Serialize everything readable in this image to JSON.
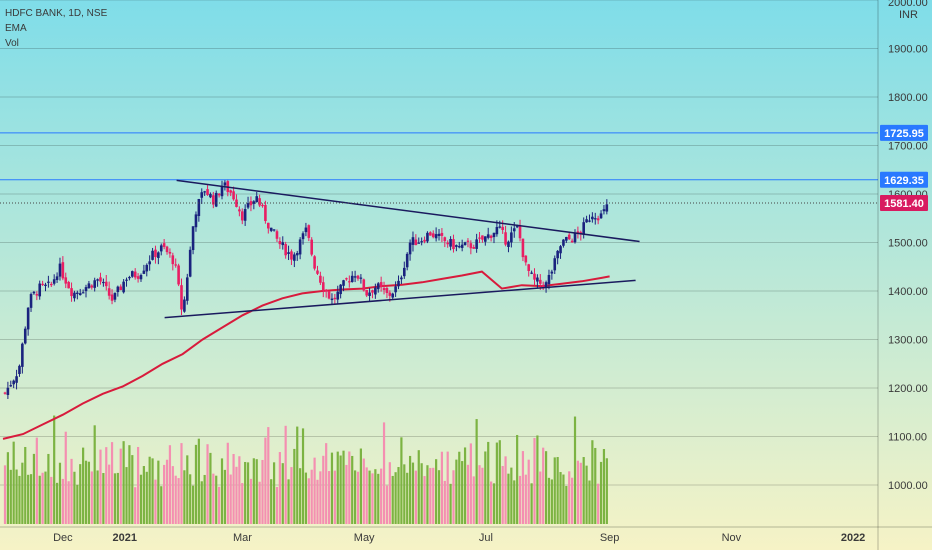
{
  "legend": {
    "symbol_line": "HDFC BANK, 1D, NSE",
    "ema_label": "EMA",
    "vol_label": "Vol"
  },
  "currency": "INR",
  "price_tags": [
    {
      "value": 1725.95,
      "label": "1725.95",
      "bg": "#2979ff",
      "fg": "#ffffff"
    },
    {
      "value": 1629.35,
      "label": "1629.35",
      "bg": "#2979ff",
      "fg": "#ffffff"
    },
    {
      "value": 1581.4,
      "label": "1581.40",
      "bg": "#d81b60",
      "fg": "#ffffff"
    }
  ],
  "colors": {
    "up": "#1a237e",
    "down": "#e91e63",
    "vol_up": "#7cb342",
    "vol_down": "#f48fb1",
    "ema": "#d81b3c",
    "trend": "#1a1a5e",
    "hline": "#2979ff",
    "bg_top": "#7fdde9",
    "bg_bottom": "#f6f3c6"
  },
  "chart_data": {
    "type": "candlestick",
    "y_axis": {
      "ticks": [
        1000,
        1100,
        1200,
        1300,
        1400,
        1500,
        1600,
        1700,
        1800,
        1900,
        2000
      ],
      "tick_labels": [
        "1000.00",
        "1100.00",
        "1200.00",
        "1300.00",
        "1400.00",
        "1500.00",
        "1600.00",
        "1700.00",
        "1800.00",
        "1900.00",
        "2000.00"
      ],
      "range": [
        910,
        2000
      ]
    },
    "x_axis": {
      "range_days": [
        0,
        432
      ],
      "ticks": [
        {
          "label": "Dec",
          "day": 30,
          "bold": false
        },
        {
          "label": "2021",
          "day": 61,
          "bold": true
        },
        {
          "label": "Mar",
          "day": 120,
          "bold": false
        },
        {
          "label": "May",
          "day": 181,
          "bold": false
        },
        {
          "label": "Jul",
          "day": 242,
          "bold": false
        },
        {
          "label": "Sep",
          "day": 304,
          "bold": false
        },
        {
          "label": "Nov",
          "day": 365,
          "bold": false
        },
        {
          "label": "2022",
          "day": 426,
          "bold": true
        }
      ]
    },
    "horizontal_lines": [
      1725.95,
      1629.35
    ],
    "trendlines": [
      {
        "from": {
          "day": 87,
          "price": 1628
        },
        "to": {
          "day": 319,
          "price": 1502
        }
      },
      {
        "from": {
          "day": 81,
          "price": 1345
        },
        "to": {
          "day": 317,
          "price": 1422
        }
      }
    ],
    "close_path": [
      [
        1,
        1190
      ],
      [
        8,
        1240
      ],
      [
        13,
        1380
      ],
      [
        18,
        1405
      ],
      [
        24,
        1410
      ],
      [
        28,
        1450
      ],
      [
        35,
        1395
      ],
      [
        42,
        1410
      ],
      [
        48,
        1425
      ],
      [
        55,
        1380
      ],
      [
        62,
        1430
      ],
      [
        68,
        1435
      ],
      [
        74,
        1470
      ],
      [
        80,
        1490
      ],
      [
        86,
        1460
      ],
      [
        90,
        1350
      ],
      [
        96,
        1560
      ],
      [
        101,
        1610
      ],
      [
        106,
        1585
      ],
      [
        110,
        1620
      ],
      [
        115,
        1600
      ],
      [
        120,
        1555
      ],
      [
        127,
        1595
      ],
      [
        132,
        1545
      ],
      [
        138,
        1500
      ],
      [
        145,
        1470
      ],
      [
        152,
        1525
      ],
      [
        156,
        1455
      ],
      [
        161,
        1405
      ],
      [
        165,
        1380
      ],
      [
        168,
        1395
      ],
      [
        172,
        1420
      ],
      [
        177,
        1440
      ],
      [
        182,
        1395
      ],
      [
        187,
        1410
      ],
      [
        193,
        1390
      ],
      [
        198,
        1410
      ],
      [
        204,
        1500
      ],
      [
        209,
        1505
      ],
      [
        214,
        1520
      ],
      [
        220,
        1505
      ],
      [
        228,
        1490
      ],
      [
        236,
        1495
      ],
      [
        242,
        1510
      ],
      [
        248,
        1530
      ],
      [
        252,
        1505
      ],
      [
        258,
        1530
      ],
      [
        262,
        1450
      ],
      [
        266,
        1420
      ],
      [
        272,
        1412
      ],
      [
        276,
        1452
      ],
      [
        280,
        1500
      ],
      [
        286,
        1510
      ],
      [
        290,
        1525
      ],
      [
        295,
        1560
      ],
      [
        300,
        1555
      ],
      [
        304,
        1581.4
      ]
    ],
    "ema": [
      [
        0,
        1095
      ],
      [
        10,
        1105
      ],
      [
        20,
        1125
      ],
      [
        30,
        1145
      ],
      [
        40,
        1168
      ],
      [
        50,
        1188
      ],
      [
        60,
        1203
      ],
      [
        70,
        1225
      ],
      [
        80,
        1250
      ],
      [
        90,
        1270
      ],
      [
        100,
        1300
      ],
      [
        110,
        1325
      ],
      [
        120,
        1350
      ],
      [
        130,
        1370
      ],
      [
        140,
        1385
      ],
      [
        150,
        1395
      ],
      [
        160,
        1400
      ],
      [
        170,
        1403
      ],
      [
        180,
        1405
      ],
      [
        190,
        1410
      ],
      [
        200,
        1413
      ],
      [
        210,
        1418
      ],
      [
        220,
        1425
      ],
      [
        230,
        1432
      ],
      [
        240,
        1440
      ],
      [
        250,
        1405
      ],
      [
        260,
        1412
      ],
      [
        270,
        1410
      ],
      [
        280,
        1415
      ],
      [
        290,
        1420
      ],
      [
        300,
        1427
      ],
      [
        304,
        1430
      ]
    ],
    "volume_pattern": [
      0.45,
      0.62,
      0.38,
      0.7,
      0.55,
      0.3,
      0.48,
      0.52,
      0.41,
      0.36,
      0.58,
      0.66,
      0.33,
      0.44,
      0.28,
      0.5,
      0.39,
      0.72,
      0.35,
      0.47
    ]
  }
}
